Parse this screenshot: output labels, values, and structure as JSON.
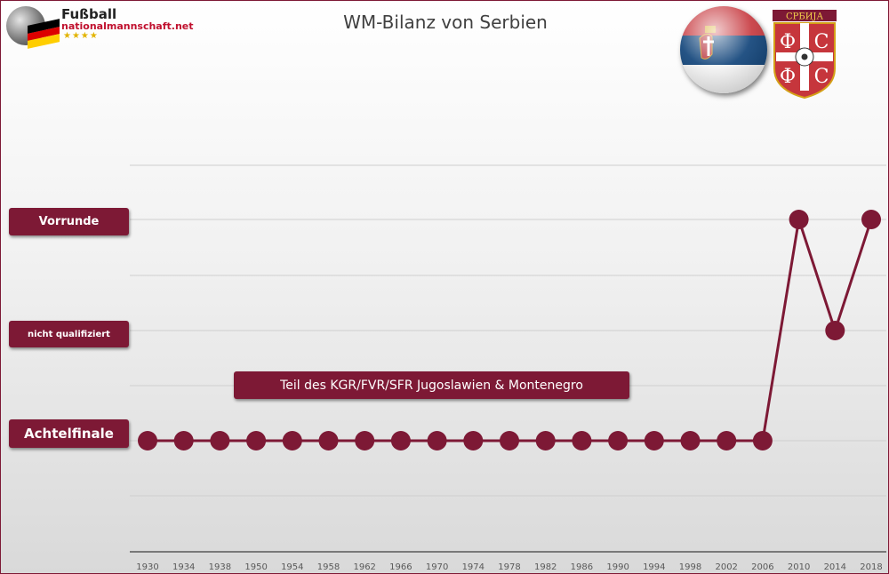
{
  "logo": {
    "line1": "Fußball",
    "line2": "nationalmannschaft.net",
    "stars": "★★★★"
  },
  "crest": {
    "top_text": "СРБИЈА",
    "letters": [
      "Ф",
      "С",
      "Ф",
      "С"
    ]
  },
  "colors": {
    "accent": "#7d1935",
    "grid": "#cfcfcf",
    "axis": "#595959",
    "serbia_red": "#c6363c",
    "serbia_blue": "#0c4077",
    "serbia_white": "#ffffff"
  },
  "annotation": "Teil des KGR/FVR/SFR Jugoslawien & Montenegro",
  "chart_data": {
    "type": "line",
    "title": "WM-Bilanz von Serbien",
    "categories": [
      "1930",
      "1934",
      "1938",
      "1950",
      "1954",
      "1958",
      "1962",
      "1966",
      "1970",
      "1974",
      "1978",
      "1982",
      "1986",
      "1990",
      "1994",
      "1998",
      "2002",
      "2006",
      "2010",
      "2014",
      "2018"
    ],
    "y_levels": [
      "Achtelfinale",
      "nicht qualifiziert",
      "Vorrunde"
    ],
    "series": [
      {
        "values": [
          "Achtelfinale",
          "Achtelfinale",
          "Achtelfinale",
          "Achtelfinale",
          "Achtelfinale",
          "Achtelfinale",
          "Achtelfinale",
          "Achtelfinale",
          "Achtelfinale",
          "Achtelfinale",
          "Achtelfinale",
          "Achtelfinale",
          "Achtelfinale",
          "Achtelfinale",
          "Achtelfinale",
          "Achtelfinale",
          "Achtelfinale",
          "Achtelfinale",
          "Vorrunde",
          "nicht qualifiziert",
          "Vorrunde"
        ]
      }
    ],
    "grid": true,
    "legend": "none"
  }
}
